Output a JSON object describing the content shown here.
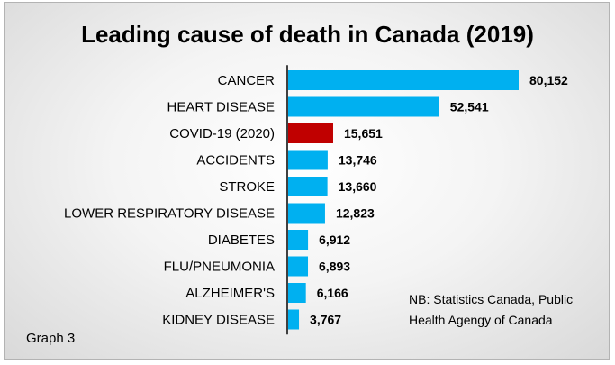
{
  "chart_data": {
    "type": "bar",
    "orientation": "horizontal",
    "title": "Leading cause of death in Canada (2019)",
    "categories": [
      "CANCER",
      "HEART DISEASE",
      "COVID-19 (2020)",
      "ACCIDENTS",
      "STROKE",
      "LOWER RESPIRATORY DISEASE",
      "DIABETES",
      "FLU/PNEUMONIA",
      "ALZHEIMER'S",
      "KIDNEY DISEASE"
    ],
    "values": [
      80152,
      52541,
      15651,
      13746,
      13660,
      12823,
      6912,
      6893,
      6166,
      3767
    ],
    "value_labels": [
      "80,152",
      "52,541",
      "15,651",
      "13,746",
      "13,660",
      "12,823",
      "6,912",
      "6,893",
      "6,166",
      "3,767"
    ],
    "bar_colors": [
      "#00b0f0",
      "#00b0f0",
      "#c00000",
      "#00b0f0",
      "#00b0f0",
      "#00b0f0",
      "#00b0f0",
      "#00b0f0",
      "#00b0f0",
      "#00b0f0"
    ],
    "xlim": [
      0,
      80152
    ],
    "grid": false,
    "legend": "none"
  },
  "note": {
    "line1": "NB: Statistics Canada, Public",
    "line2": "Health Agengy of Canada"
  },
  "graph_label": "Graph 3"
}
